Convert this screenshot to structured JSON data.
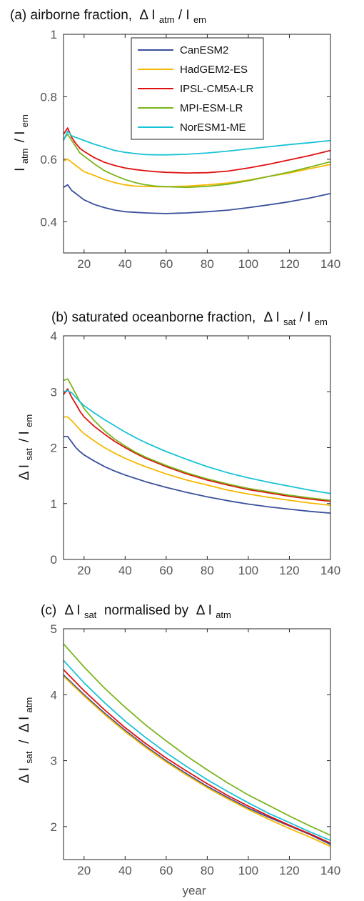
{
  "chart_data": [
    {
      "type": "line",
      "title": "(a) airborne fraction,",
      "title_math": {
        "delta": "Δ",
        "a_base": "I",
        "a_sub": "atm",
        "sep": " /",
        "b_base": "I",
        "b_sub": "em"
      },
      "xlabel": "",
      "ylabel_math": {
        "base_a": "I",
        "sub_a": "atm",
        "sep": "/",
        "base_b": "I",
        "sub_b": "em"
      },
      "xlim": [
        10,
        140
      ],
      "ylim": [
        0.3,
        1.0
      ],
      "xticks": [
        20,
        40,
        60,
        80,
        100,
        120,
        140
      ],
      "xtick_labels": [
        "20",
        "40",
        "60",
        "80",
        "100",
        "120",
        "140"
      ],
      "yticks": [
        0.4,
        0.6,
        0.8,
        1.0
      ],
      "ytick_labels": [
        "0.4",
        "0.6",
        "0.8",
        "1"
      ],
      "grid": false,
      "legend_position": "top-center",
      "series": [
        {
          "name": "CanESM2",
          "color": "#3a4f9c",
          "x": [
            10,
            12,
            14,
            16,
            18,
            20,
            25,
            30,
            35,
            40,
            45,
            50,
            55,
            60,
            70,
            80,
            90,
            100,
            110,
            120,
            130,
            140
          ],
          "y": [
            0.51,
            0.518,
            0.5,
            0.49,
            0.48,
            0.47,
            0.455,
            0.445,
            0.437,
            0.432,
            0.43,
            0.428,
            0.427,
            0.426,
            0.428,
            0.432,
            0.437,
            0.445,
            0.454,
            0.464,
            0.476,
            0.49
          ]
        },
        {
          "name": "HadGEM2-ES",
          "color": "#f5b800",
          "x": [
            10,
            12,
            14,
            16,
            18,
            20,
            25,
            30,
            35,
            40,
            45,
            50,
            55,
            60,
            70,
            80,
            90,
            100,
            110,
            120,
            130,
            140
          ],
          "y": [
            0.595,
            0.6,
            0.59,
            0.58,
            0.57,
            0.56,
            0.548,
            0.535,
            0.525,
            0.518,
            0.514,
            0.513,
            0.512,
            0.512,
            0.514,
            0.518,
            0.524,
            0.533,
            0.545,
            0.556,
            0.57,
            0.583
          ]
        },
        {
          "name": "IPSL-CM5A-LR",
          "color": "#e01010",
          "x": [
            10,
            12,
            14,
            16,
            18,
            20,
            25,
            30,
            35,
            40,
            45,
            50,
            55,
            60,
            70,
            80,
            90,
            100,
            110,
            120,
            130,
            140
          ],
          "y": [
            0.68,
            0.7,
            0.67,
            0.65,
            0.635,
            0.625,
            0.605,
            0.59,
            0.58,
            0.572,
            0.567,
            0.563,
            0.56,
            0.558,
            0.556,
            0.557,
            0.562,
            0.572,
            0.584,
            0.598,
            0.612,
            0.628
          ]
        },
        {
          "name": "MPI-ESM-LR",
          "color": "#7ab51d",
          "x": [
            10,
            12,
            14,
            16,
            18,
            20,
            25,
            30,
            35,
            40,
            45,
            50,
            55,
            60,
            70,
            80,
            90,
            100,
            110,
            120,
            130,
            140
          ],
          "y": [
            0.665,
            0.68,
            0.66,
            0.64,
            0.62,
            0.61,
            0.585,
            0.563,
            0.548,
            0.535,
            0.525,
            0.518,
            0.514,
            0.512,
            0.51,
            0.513,
            0.52,
            0.531,
            0.545,
            0.559,
            0.575,
            0.592
          ]
        },
        {
          "name": "NorESM1-ME",
          "color": "#19c3d6",
          "x": [
            10,
            12,
            14,
            16,
            18,
            20,
            25,
            30,
            35,
            40,
            45,
            50,
            55,
            60,
            70,
            80,
            90,
            100,
            110,
            120,
            130,
            140
          ],
          "y": [
            0.66,
            0.69,
            0.675,
            0.67,
            0.665,
            0.66,
            0.648,
            0.638,
            0.628,
            0.622,
            0.618,
            0.615,
            0.614,
            0.614,
            0.616,
            0.62,
            0.626,
            0.633,
            0.64,
            0.647,
            0.653,
            0.66
          ]
        }
      ]
    },
    {
      "type": "line",
      "title": "(b) saturated oceanborne fraction,",
      "title_math": {
        "delta": "Δ",
        "a_base": "I",
        "a_sub": "sat",
        "sep": " /",
        "b_base": "I",
        "b_sub": "em"
      },
      "xlabel": "",
      "ylabel_math": {
        "delta": "Δ",
        "base_a": "I",
        "sub_a": "sat",
        "sep": "/",
        "base_b": "I",
        "sub_b": "em"
      },
      "xlim": [
        10,
        140
      ],
      "ylim": [
        0,
        4
      ],
      "xticks": [
        20,
        40,
        60,
        80,
        100,
        120,
        140
      ],
      "xtick_labels": [
        "20",
        "40",
        "60",
        "80",
        "100",
        "120",
        "140"
      ],
      "yticks": [
        0,
        1,
        2,
        3,
        4
      ],
      "ytick_labels": [
        "0",
        "1",
        "2",
        "3",
        "4"
      ],
      "grid": false,
      "series": [
        {
          "name": "CanESM2",
          "color": "#3a4f9c",
          "x": [
            10,
            12,
            14,
            16,
            18,
            20,
            25,
            30,
            35,
            40,
            45,
            50,
            60,
            70,
            80,
            90,
            100,
            110,
            120,
            130,
            140
          ],
          "y": [
            2.2,
            2.2,
            2.1,
            2.0,
            1.93,
            1.87,
            1.76,
            1.66,
            1.58,
            1.51,
            1.45,
            1.39,
            1.29,
            1.2,
            1.12,
            1.05,
            0.99,
            0.94,
            0.9,
            0.86,
            0.83
          ]
        },
        {
          "name": "HadGEM2-ES",
          "color": "#f5b800",
          "x": [
            10,
            12,
            14,
            16,
            18,
            20,
            25,
            30,
            35,
            40,
            45,
            50,
            60,
            70,
            80,
            90,
            100,
            110,
            120,
            130,
            140
          ],
          "y": [
            2.55,
            2.55,
            2.48,
            2.4,
            2.32,
            2.25,
            2.12,
            2.0,
            1.9,
            1.81,
            1.73,
            1.66,
            1.53,
            1.42,
            1.33,
            1.24,
            1.17,
            1.11,
            1.06,
            1.01,
            0.97
          ]
        },
        {
          "name": "IPSL-CM5A-LR",
          "color": "#e01010",
          "x": [
            10,
            12,
            14,
            16,
            18,
            20,
            25,
            30,
            35,
            40,
            45,
            50,
            60,
            70,
            80,
            90,
            100,
            110,
            120,
            130,
            140
          ],
          "y": [
            2.95,
            3.05,
            2.9,
            2.78,
            2.65,
            2.55,
            2.38,
            2.24,
            2.11,
            2.0,
            1.9,
            1.81,
            1.66,
            1.53,
            1.42,
            1.33,
            1.25,
            1.19,
            1.13,
            1.08,
            1.04
          ]
        },
        {
          "name": "MPI-ESM-LR",
          "color": "#7ab51d",
          "x": [
            10,
            12,
            14,
            16,
            18,
            20,
            25,
            30,
            35,
            40,
            45,
            50,
            60,
            70,
            80,
            90,
            100,
            110,
            120,
            130,
            140
          ],
          "y": [
            3.2,
            3.23,
            3.1,
            2.96,
            2.82,
            2.7,
            2.48,
            2.3,
            2.15,
            2.03,
            1.92,
            1.83,
            1.68,
            1.55,
            1.44,
            1.35,
            1.27,
            1.21,
            1.15,
            1.1,
            1.06
          ]
        },
        {
          "name": "NorESM1-ME",
          "color": "#19c3d6",
          "x": [
            10,
            12,
            14,
            16,
            18,
            20,
            25,
            30,
            35,
            40,
            45,
            50,
            60,
            70,
            80,
            90,
            100,
            110,
            120,
            130,
            140
          ],
          "y": [
            3.0,
            3.02,
            2.98,
            2.9,
            2.82,
            2.75,
            2.62,
            2.5,
            2.39,
            2.28,
            2.18,
            2.09,
            1.93,
            1.79,
            1.66,
            1.55,
            1.46,
            1.38,
            1.31,
            1.24,
            1.18
          ]
        }
      ]
    },
    {
      "type": "line",
      "title": "(c)",
      "title_math": {
        "delta": "Δ",
        "a_base": "I",
        "a_sub": "sat",
        "middle": " normalised by ",
        "b_base": "I",
        "b_sub": "atm"
      },
      "xlabel": "year",
      "ylabel_math": {
        "delta": "Δ",
        "base_a": "I",
        "sub_a": "sat",
        "sep": " / ",
        "base_b": "I",
        "sub_b": "atm"
      },
      "xlim": [
        10,
        140
      ],
      "ylim": [
        1.5,
        5.0
      ],
      "xticks": [
        20,
        40,
        60,
        80,
        100,
        120,
        140
      ],
      "xtick_labels": [
        "20",
        "40",
        "60",
        "80",
        "100",
        "120",
        "140"
      ],
      "yticks": [
        2,
        3,
        4,
        5
      ],
      "ytick_labels": [
        "2",
        "3",
        "4",
        "5"
      ],
      "grid": false,
      "series": [
        {
          "name": "CanESM2",
          "color": "#3a4f9c",
          "x": [
            10,
            20,
            30,
            40,
            50,
            60,
            70,
            80,
            90,
            100,
            110,
            120,
            130,
            140
          ],
          "y": [
            4.3,
            4.0,
            3.72,
            3.46,
            3.22,
            3.0,
            2.8,
            2.61,
            2.44,
            2.28,
            2.14,
            2.01,
            1.88,
            1.73
          ]
        },
        {
          "name": "HadGEM2-ES",
          "color": "#f5b800",
          "x": [
            10,
            20,
            30,
            40,
            50,
            60,
            70,
            80,
            90,
            100,
            110,
            120,
            130,
            140
          ],
          "y": [
            4.28,
            3.98,
            3.7,
            3.44,
            3.2,
            2.98,
            2.78,
            2.59,
            2.42,
            2.26,
            2.11,
            1.97,
            1.84,
            1.7
          ]
        },
        {
          "name": "IPSL-CM5A-LR",
          "color": "#e01010",
          "x": [
            10,
            20,
            30,
            40,
            50,
            60,
            70,
            80,
            90,
            100,
            110,
            120,
            130,
            140
          ],
          "y": [
            4.38,
            4.06,
            3.77,
            3.5,
            3.26,
            3.04,
            2.84,
            2.65,
            2.47,
            2.31,
            2.16,
            2.02,
            1.89,
            1.75
          ]
        },
        {
          "name": "MPI-ESM-LR",
          "color": "#7ab51d",
          "x": [
            10,
            20,
            30,
            40,
            50,
            60,
            70,
            80,
            90,
            100,
            110,
            120,
            130,
            140
          ],
          "y": [
            4.77,
            4.42,
            4.1,
            3.81,
            3.54,
            3.3,
            3.07,
            2.86,
            2.66,
            2.48,
            2.32,
            2.16,
            2.01,
            1.87
          ]
        },
        {
          "name": "NorESM1-ME",
          "color": "#19c3d6",
          "x": [
            10,
            20,
            30,
            40,
            50,
            60,
            70,
            80,
            90,
            100,
            110,
            120,
            130,
            140
          ],
          "y": [
            4.52,
            4.18,
            3.88,
            3.6,
            3.35,
            3.12,
            2.91,
            2.71,
            2.53,
            2.36,
            2.2,
            2.06,
            1.92,
            1.79
          ]
        }
      ]
    }
  ]
}
